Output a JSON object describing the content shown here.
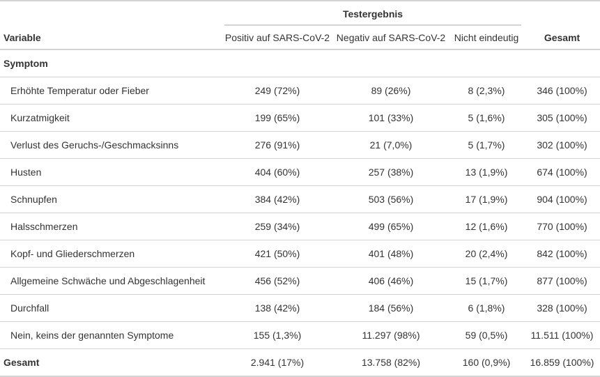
{
  "header": {
    "variable": "Variable",
    "spanner": "Testergebnis",
    "columns": [
      "Positiv auf SARS-CoV-2",
      "Negativ auf SARS-CoV-2",
      "Nicht eindeutig"
    ],
    "total": "Gesamt"
  },
  "group_label": "Symptom",
  "rows": [
    {
      "label": "Erhöhte Temperatur oder Fieber",
      "pos": "249 (72%)",
      "neg": "89 (26%)",
      "unk": "8 (2,3%)",
      "total": "346 (100%)"
    },
    {
      "label": "Kurzatmigkeit",
      "pos": "199 (65%)",
      "neg": "101 (33%)",
      "unk": "5 (1,6%)",
      "total": "305 (100%)"
    },
    {
      "label": "Verlust des Geruchs-/Geschmacksinns",
      "pos": "276 (91%)",
      "neg": "21 (7,0%)",
      "unk": "5 (1,7%)",
      "total": "302 (100%)"
    },
    {
      "label": "Husten",
      "pos": "404 (60%)",
      "neg": "257 (38%)",
      "unk": "13 (1,9%)",
      "total": "674 (100%)"
    },
    {
      "label": "Schnupfen",
      "pos": "384 (42%)",
      "neg": "503 (56%)",
      "unk": "17 (1,9%)",
      "total": "904 (100%)"
    },
    {
      "label": "Halsschmerzen",
      "pos": "259 (34%)",
      "neg": "499 (65%)",
      "unk": "12 (1,6%)",
      "total": "770 (100%)"
    },
    {
      "label": "Kopf- und Gliederschmerzen",
      "pos": "421 (50%)",
      "neg": "401 (48%)",
      "unk": "20 (2,4%)",
      "total": "842 (100%)"
    },
    {
      "label": "Allgemeine Schwäche und Abgeschlagenheit",
      "pos": "456 (52%)",
      "neg": "406 (46%)",
      "unk": "15 (1,7%)",
      "total": "877 (100%)"
    },
    {
      "label": "Durchfall",
      "pos": "138 (42%)",
      "neg": "184 (56%)",
      "unk": "6 (1,8%)",
      "total": "328 (100%)"
    },
    {
      "label": "Nein, keins der genannten Symptome",
      "pos": "155 (1,3%)",
      "neg": "11.297 (98%)",
      "unk": "59 (0,5%)",
      "total": "11.511 (100%)"
    }
  ],
  "total_row": {
    "label": "Gesamt",
    "pos": "2.941 (17%)",
    "neg": "13.758 (82%)",
    "unk": "160 (0,9%)",
    "total": "16.859 (100%)"
  },
  "colors": {
    "text": "#333333",
    "rule": "#d3d3d3",
    "background": "#ffffff"
  }
}
